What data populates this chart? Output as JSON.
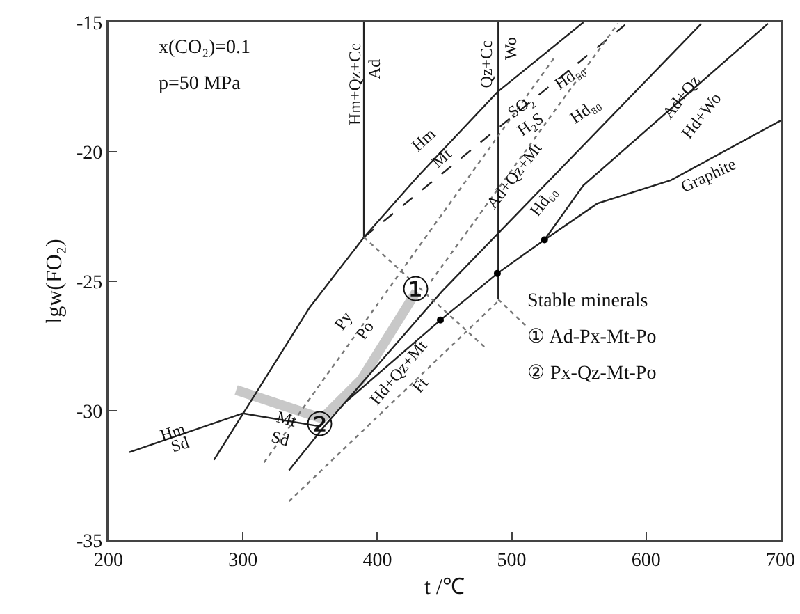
{
  "chart_data": {
    "type": "line",
    "xlabel": "t /℃",
    "ylabel": "lgw(FO₂)",
    "xlim": [
      200,
      700
    ],
    "ylim": [
      -35,
      -15
    ],
    "xticks": [
      200,
      300,
      400,
      500,
      600,
      700
    ],
    "yticks": [
      -35,
      -30,
      -25,
      -20,
      -15
    ],
    "grid": false,
    "series": [
      {
        "color": "#c8c8c8",
        "line_style": "solid",
        "x": [
          295,
          359,
          388,
          429
        ],
        "values": [
          -29.2,
          -30.3,
          -28.8,
          -25.4
        ]
      },
      {
        "color": "#222222",
        "line_style": "solid",
        "x": [
          215.5,
          300
        ],
        "values": [
          -31.6,
          -30.1
        ]
      },
      {
        "color": "#222222",
        "line_style": "solid",
        "x": [
          300,
          357
        ],
        "values": [
          -30.1,
          -30.6
        ]
      },
      {
        "color": "#222222",
        "line_style": "solid",
        "x": [
          278.5,
          349.8,
          390.1,
          429.3,
          489.3,
          553.3
        ],
        "values": [
          -31.9,
          -26.0,
          -23.3,
          -21.0,
          -17.7,
          -15.0
        ]
      },
      {
        "color": "#222222",
        "line_style": "solid",
        "x": [
          390,
          390
        ],
        "values": [
          -15,
          -23.3
        ]
      },
      {
        "color": "#222222",
        "line_style": "solid",
        "x": [
          490,
          490
        ],
        "values": [
          -15,
          -25.7
        ]
      },
      {
        "color": "#222222",
        "line_style": "solid",
        "x": [
          334.3,
          362.2,
          447.9,
          641.1
        ],
        "values": [
          -32.3,
          -30.5,
          -25.4,
          -15.05
        ]
      },
      {
        "color": "#222222",
        "line_style": "solid",
        "x": [
          375.6,
          446.9,
          489.3,
          524.4,
          563.6,
          618.4,
          700
        ],
        "values": [
          -29.7,
          -26.5,
          -24.7,
          -23.4,
          -22.0,
          -21.1,
          -18.8
        ]
      },
      {
        "color": "#222222",
        "line_style": "solid",
        "x": [
          524.4,
          553.3,
          690.7
        ],
        "values": [
          -23.4,
          -21.3,
          -15.05
        ]
      },
      {
        "color": "#222222",
        "line_style": "dashed",
        "x": [
          390,
          584.3
        ],
        "values": [
          -23.3,
          -15.1
        ]
      },
      {
        "color": "#777777",
        "line_style": "dotted",
        "x": [
          315.7,
          532.6
        ],
        "values": [
          -32.0,
          -16.3
        ]
      },
      {
        "color": "#777777",
        "line_style": "dotted",
        "x": [
          334.3,
          491.3
        ],
        "values": [
          -33.5,
          -25.7
        ]
      },
      {
        "color": "#777777",
        "line_style": "dotted",
        "x": [
          440,
          579
        ],
        "values": [
          -25.0,
          -15.05
        ]
      },
      {
        "color": "#777777",
        "line_style": "dotted",
        "x": [
          390,
          481
        ],
        "values": [
          -23.3,
          -27.6
        ]
      },
      {
        "color": "#777777",
        "line_style": "dotted",
        "x": [
          490,
          512
        ],
        "values": [
          -25.7,
          -26.8
        ]
      },
      {
        "type": "scatter",
        "marker": "circle",
        "color": "#000000",
        "x": [
          446.9,
          489.3,
          524.4
        ],
        "values": [
          -26.5,
          -24.7,
          -23.4
        ]
      }
    ],
    "annotations": [
      "x(CO₂)=0.1",
      "p=50 MPa",
      "Stable minerals",
      "① Ad-Px-Mt-Po",
      "② Px-Qz-Mt-Po",
      "Hm+Qz+Cc",
      "Ad",
      "Qz+Cc",
      "Wo",
      "Hm",
      "Mt",
      "SO₂",
      "H₂S",
      "Hd₅₀",
      "Hd₈₀",
      "Ad+Qz+Mt",
      "Hd₆₀",
      "Ad+Qz",
      "Hd+Wo",
      "Graphite",
      "Py",
      "Po",
      "Hd+Qz+Mt",
      "Ft",
      "Hm",
      "Sd",
      "Mt",
      "Sd",
      {
        "text": "①",
        "x": 429,
        "y": -25.4
      },
      {
        "text": "②",
        "x": 357,
        "y": -30.6
      }
    ]
  }
}
